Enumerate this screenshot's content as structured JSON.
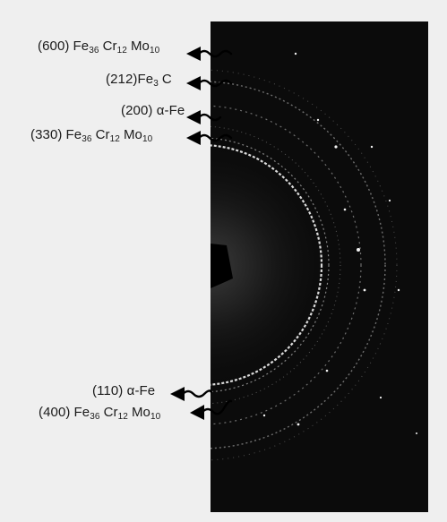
{
  "figure": {
    "background_color": "#efefef",
    "pattern_background_color": "#0b0b0b",
    "ring_color": "#e8e8e8",
    "label_color": "#1a1a1a"
  },
  "labels": [
    {
      "id": "l600",
      "hkl": "(600)",
      "p1": "Fe",
      "s1": "36",
      "p2": "Cr",
      "s2": "12",
      "p3": "M",
      "p4": "o",
      "s3": "10"
    },
    {
      "id": "l212",
      "text": "(212)Fe",
      "sub": "3",
      "tail": "C"
    },
    {
      "id": "l200",
      "text": "(200) α-Fe"
    },
    {
      "id": "l330",
      "hkl": "(330)",
      "p1": "Fe",
      "s1": "36",
      "p2": "Cr",
      "s2": "12",
      "p3": "M",
      "p4": "o",
      "s3": "10"
    },
    {
      "id": "l110",
      "text": "(110) α-Fe"
    },
    {
      "id": "l400",
      "hkl": "(400)",
      "p1": "Fe",
      "s1": "36",
      "p2": "Cr",
      "s2": "12",
      "p3": "M",
      "p4": "o",
      "s3": "10"
    }
  ]
}
